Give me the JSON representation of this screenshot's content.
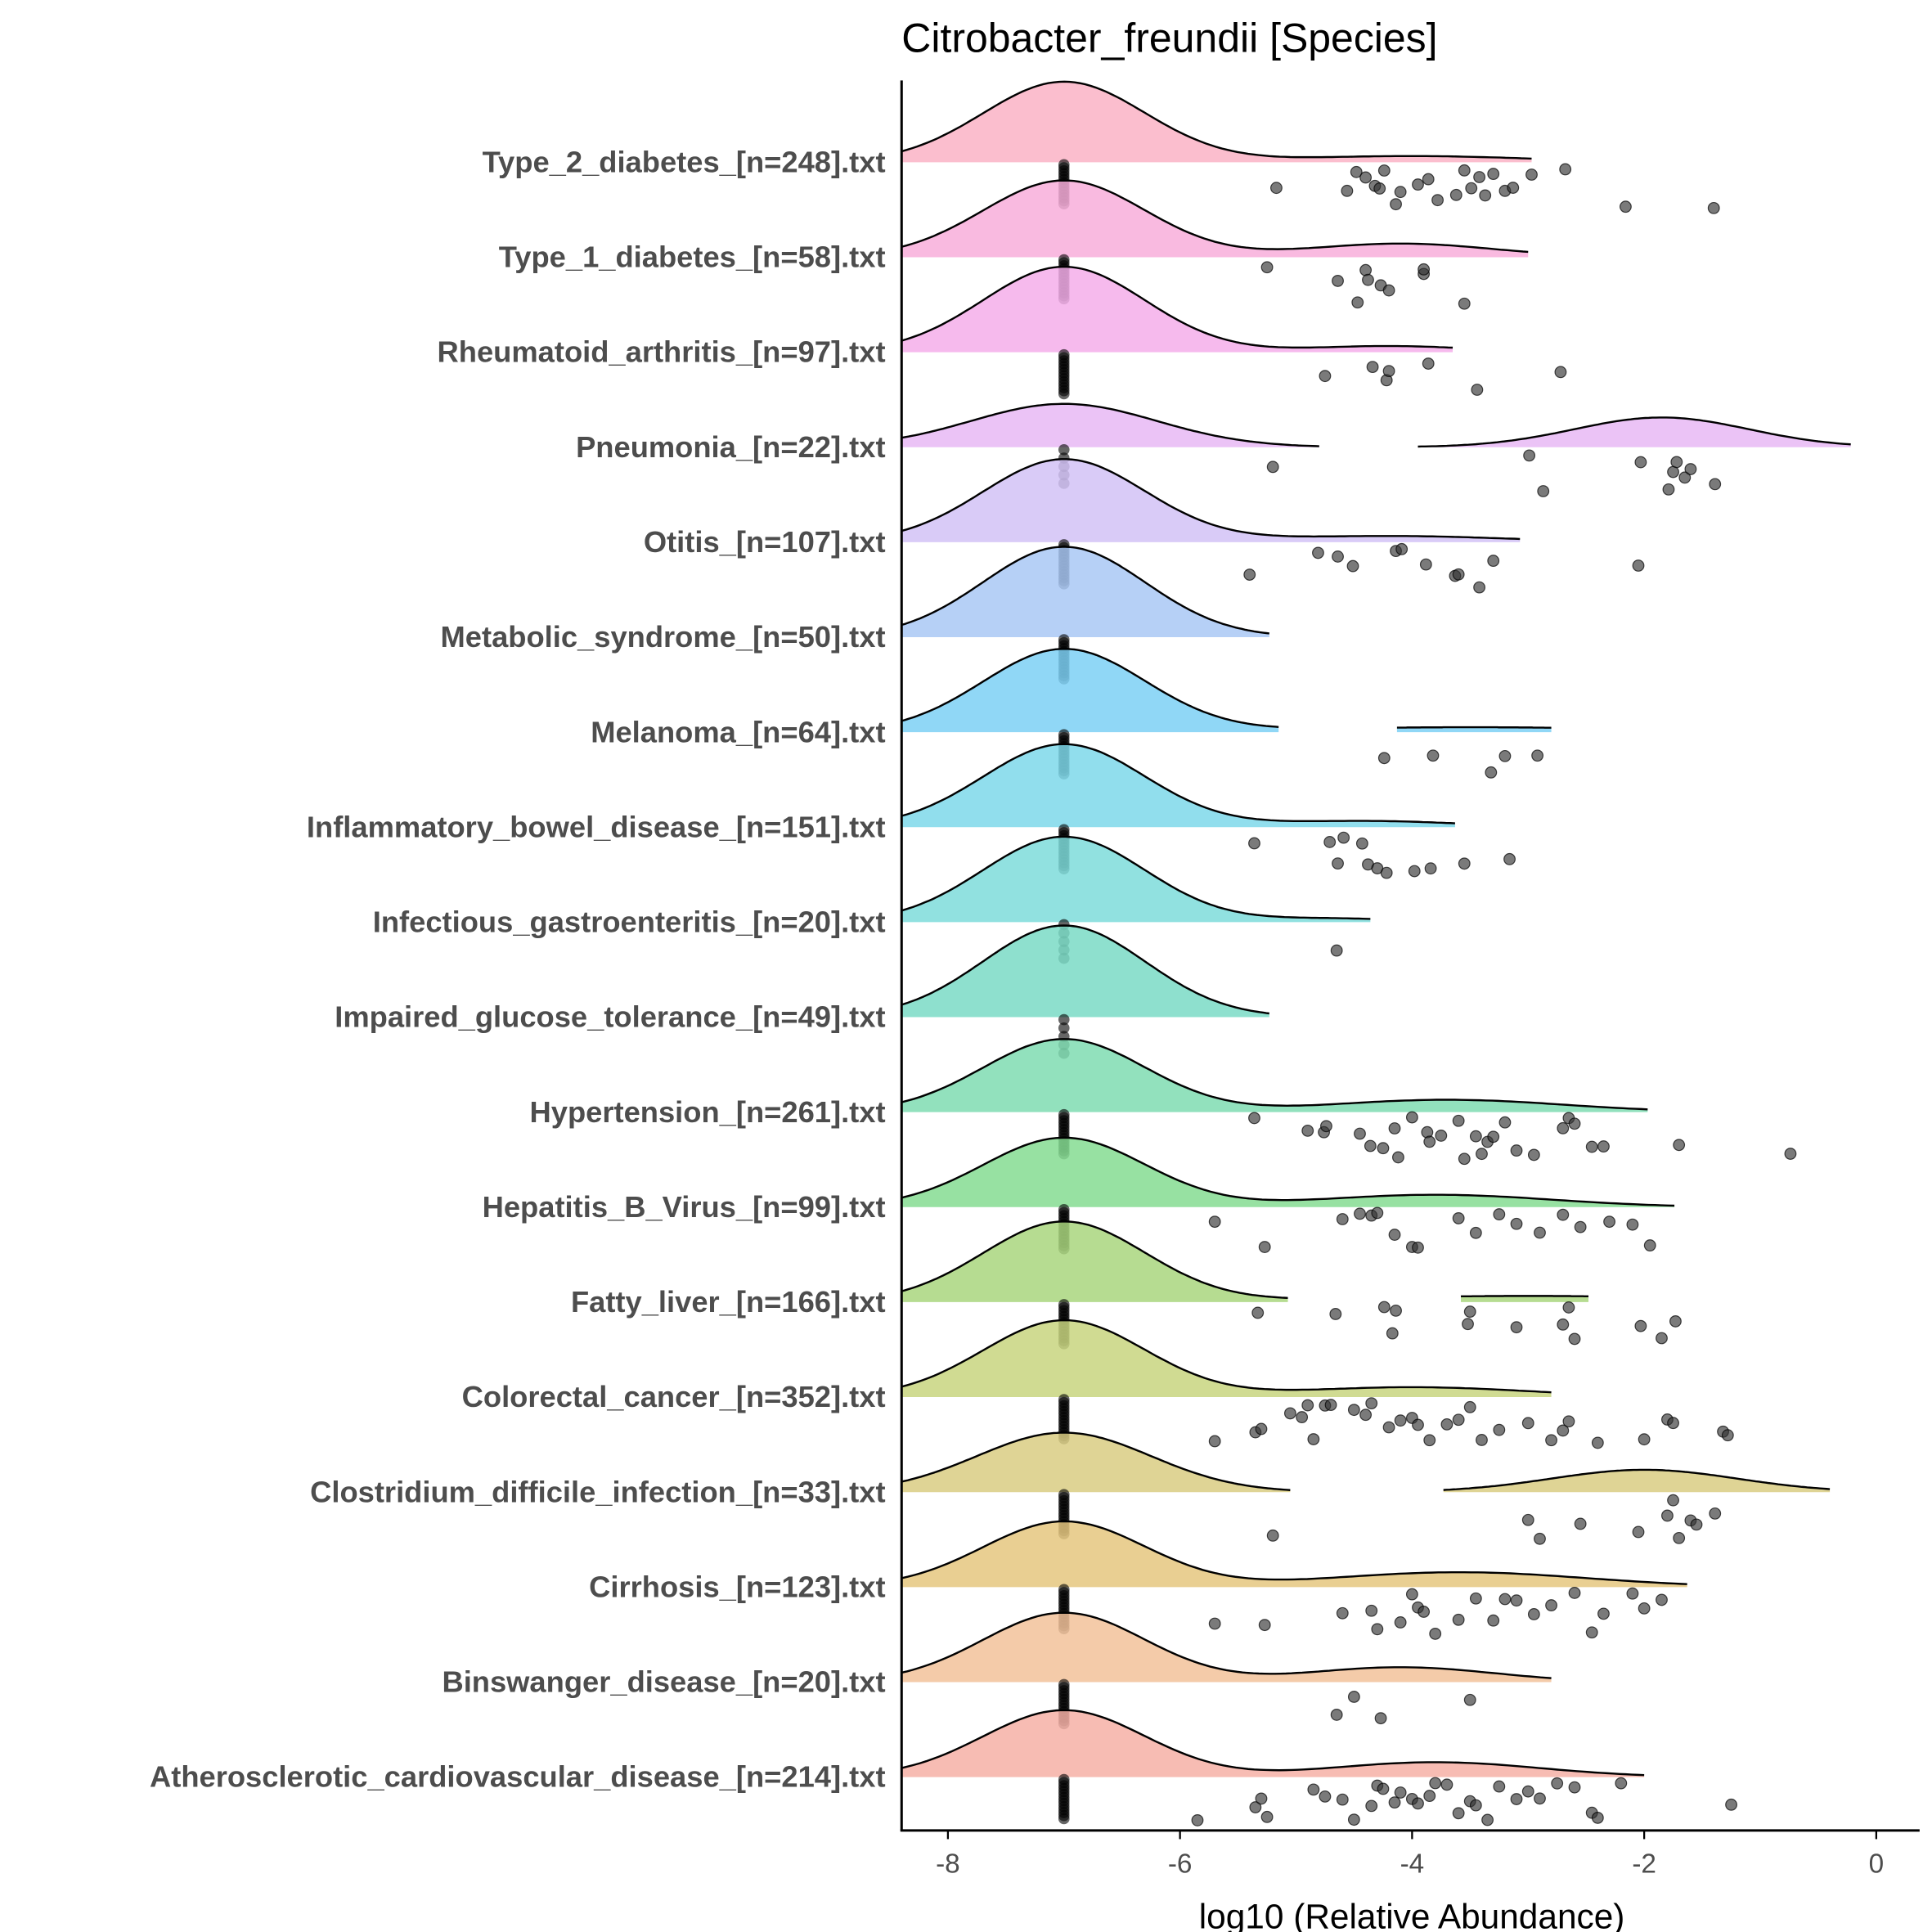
{
  "chart_data": {
    "type": "ridgeline",
    "title": "Citrobacter_freundii [Species]",
    "xlabel": "log10 (Relative Abundance)",
    "ylabel": "",
    "xlim": [
      -8.4,
      0.37
    ],
    "xticks": [
      -8,
      -6,
      -4,
      -2,
      0
    ],
    "xtick_labels": [
      "-8",
      "-6",
      "-4",
      "-2",
      "0"
    ],
    "zero_value": -7,
    "rows": [
      {
        "label": "Type_2_diabetes_[n=248].txt",
        "color": "#FAB3C6",
        "segments": [
          [
            -8.4,
            -2.97
          ]
        ],
        "components": [
          [
            -7,
            0.7,
            65
          ],
          [
            -4,
            1.0,
            5
          ]
        ],
        "points": [
          -5.17,
          -4.56,
          -4.48,
          -4.4,
          -4.32,
          -4.28,
          -4.24,
          -4.14,
          -4.1,
          -3.95,
          -3.86,
          -3.78,
          -3.62,
          -3.55,
          -3.49,
          -3.42,
          -3.37,
          -3.3,
          -3.2,
          -3.13,
          -2.97,
          -2.68,
          -2.16,
          -1.4
        ]
      },
      {
        "label": "Type_1_diabetes_[n=58].txt",
        "color": "#F8AEDA",
        "segments": [
          [
            -8.4,
            -3.0
          ]
        ],
        "components": [
          [
            -7,
            0.7,
            62
          ],
          [
            -4.1,
            0.8,
            11
          ]
        ],
        "points": [
          -5.25,
          -4.64,
          -4.47,
          -4.4,
          -4.38,
          -4.27,
          -4.2,
          -3.9,
          -3.9,
          -3.55
        ]
      },
      {
        "label": "Rheumatoid_arthritis_[n=97].txt",
        "color": "#F5AEEA",
        "segments": [
          [
            -8.4,
            -3.65
          ]
        ],
        "components": [
          [
            -7,
            0.7,
            69
          ],
          [
            -4.2,
            0.7,
            5
          ]
        ],
        "points": [
          -4.75,
          -4.34,
          -4.22,
          -4.2,
          -3.86,
          -3.44,
          -2.72
        ]
      },
      {
        "label": "Pneumonia_[n=22].txt",
        "color": "#E8B9F4",
        "segments": [
          [
            -8.4,
            -4.8
          ],
          [
            -3.95,
            -0.22
          ]
        ],
        "components": [
          [
            -7,
            0.8,
            35
          ],
          [
            -1.85,
            0.75,
            24
          ]
        ],
        "points": [
          -5.2,
          -2.99,
          -2.87,
          -2.03,
          -1.79,
          -1.75,
          -1.72,
          -1.65,
          -1.6,
          -1.39
        ]
      },
      {
        "label": "Otitis_[n=107].txt",
        "color": "#D2C2F6",
        "segments": [
          [
            -8.4,
            -3.07
          ]
        ],
        "components": [
          [
            -7,
            0.7,
            67
          ],
          [
            -4.2,
            1.0,
            5
          ]
        ],
        "points": [
          -5.4,
          -4.81,
          -4.64,
          -4.51,
          -4.14,
          -4.09,
          -3.88,
          -3.63,
          -3.6,
          -3.42,
          -3.3,
          -2.05
        ]
      },
      {
        "label": "Metabolic_syndrome_[n=50].txt",
        "color": "#A9C8F5",
        "segments": [
          [
            -8.4,
            -5.23
          ]
        ],
        "components": [
          [
            -7,
            0.7,
            73
          ]
        ],
        "points": []
      },
      {
        "label": "Melanoma_[n=64].txt",
        "color": "#7DD0F5",
        "segments": [
          [
            -8.4,
            -5.15
          ],
          [
            -4.13,
            -2.8
          ]
        ],
        "components": [
          [
            -7,
            0.7,
            67
          ],
          [
            -3.5,
            1.5,
            4
          ]
        ],
        "points": [
          -4.24,
          -3.82,
          -3.32,
          -3.2,
          -2.92
        ]
      },
      {
        "label": "Inflammatory_bowel_disease_[n=151].txt",
        "color": "#7ED8EA",
        "segments": [
          [
            -8.4,
            -3.63
          ]
        ],
        "components": [
          [
            -7,
            0.7,
            67
          ],
          [
            -4.4,
            0.8,
            5
          ]
        ],
        "points": [
          -5.36,
          -4.71,
          -4.64,
          -4.59,
          -4.43,
          -4.38,
          -4.3,
          -4.22,
          -3.98,
          -3.84,
          -3.55,
          -3.16
        ]
      },
      {
        "label": "Infectious_gastroenteritis_[n=20].txt",
        "color": "#7EDCDA",
        "segments": [
          [
            -8.4,
            -4.36
          ]
        ],
        "components": [
          [
            -7,
            0.7,
            69
          ],
          [
            -4.7,
            0.6,
            3
          ]
        ],
        "points": [
          -4.65
        ]
      },
      {
        "label": "Impaired_glucose_tolerance_[n=49].txt",
        "color": "#7ADBC6",
        "segments": [
          [
            -8.4,
            -5.23
          ]
        ],
        "components": [
          [
            -7,
            0.7,
            74
          ]
        ],
        "points": []
      },
      {
        "label": "Hypertension_[n=261].txt",
        "color": "#7FDCB2",
        "segments": [
          [
            -8.4,
            -1.97
          ]
        ],
        "components": [
          [
            -7,
            0.7,
            59
          ],
          [
            -3.7,
            1.0,
            10
          ]
        ],
        "points": [
          -5.36,
          -4.9,
          -4.76,
          -4.74,
          -4.45,
          -4.36,
          -4.25,
          -4.15,
          -4.12,
          -4.0,
          -3.87,
          -3.85,
          -3.75,
          -3.6,
          -3.55,
          -3.45,
          -3.4,
          -3.35,
          -3.3,
          -3.2,
          -3.1,
          -2.95,
          -2.7,
          -2.65,
          -2.6,
          -2.45,
          -2.35,
          -1.7,
          -0.74
        ]
      },
      {
        "label": "Hepatitis_B_Virus_[n=99].txt",
        "color": "#85DC92",
        "segments": [
          [
            -8.4,
            -1.74
          ]
        ],
        "components": [
          [
            -7,
            0.7,
            56
          ],
          [
            -3.8,
            1.0,
            10
          ]
        ],
        "points": [
          -5.7,
          -5.27,
          -4.6,
          -4.45,
          -4.35,
          -4.3,
          -4.15,
          -4.0,
          -3.95,
          -3.6,
          -3.45,
          -3.25,
          -3.1,
          -2.9,
          -2.7,
          -2.55,
          -2.3,
          -2.1,
          -1.95
        ]
      },
      {
        "label": "Fatty_liver_[n=166].txt",
        "color": "#A9D67E",
        "segments": [
          [
            -8.4,
            -5.07
          ],
          [
            -3.58,
            -2.48
          ]
        ],
        "components": [
          [
            -7,
            0.7,
            65
          ],
          [
            -3.0,
            1.5,
            5
          ]
        ],
        "points": [
          -5.33,
          -4.66,
          -4.24,
          -4.17,
          -4.14,
          -3.52,
          -3.5,
          -3.1,
          -2.7,
          -2.65,
          -2.6,
          -2.03,
          -1.85,
          -1.73
        ]
      },
      {
        "label": "Colorectal_cancer_[n=352].txt",
        "color": "#C8D57F",
        "segments": [
          [
            -8.4,
            -2.8
          ]
        ],
        "components": [
          [
            -7,
            0.7,
            62
          ],
          [
            -4.0,
            1.0,
            8
          ]
        ],
        "points": [
          -5.7,
          -5.35,
          -5.3,
          -5.05,
          -4.95,
          -4.9,
          -4.85,
          -4.75,
          -4.7,
          -4.5,
          -4.4,
          -4.35,
          -4.2,
          -4.1,
          -4.0,
          -3.95,
          -3.85,
          -3.7,
          -3.6,
          -3.5,
          -3.4,
          -3.25,
          -3.0,
          -2.8,
          -2.7,
          -2.65,
          -2.4,
          -2.0,
          -1.8,
          -1.75,
          -1.32,
          -1.28
        ]
      },
      {
        "label": "Clostridium_difficile_infection_[n=33].txt",
        "color": "#D9CC82",
        "segments": [
          [
            -8.4,
            -5.05
          ],
          [
            -3.73,
            -0.4
          ]
        ],
        "components": [
          [
            -7,
            0.75,
            48
          ],
          [
            -2.0,
            0.8,
            18
          ]
        ],
        "points": [
          -5.2,
          -3.0,
          -2.9,
          -2.55,
          -2.05,
          -1.8,
          -1.75,
          -1.7,
          -1.6,
          -1.55,
          -1.39
        ]
      },
      {
        "label": "Cirrhosis_[n=123].txt",
        "color": "#E5C77F",
        "segments": [
          [
            -8.4,
            -1.63
          ]
        ],
        "components": [
          [
            -7,
            0.7,
            53
          ],
          [
            -3.6,
            1.1,
            12
          ]
        ],
        "points": [
          -5.7,
          -5.27,
          -4.6,
          -4.35,
          -4.3,
          -4.1,
          -4.0,
          -3.95,
          -3.9,
          -3.8,
          -3.6,
          -3.45,
          -3.3,
          -3.2,
          -3.1,
          -2.95,
          -2.8,
          -2.6,
          -2.45,
          -2.35,
          -2.1,
          -2.0,
          -1.85
        ]
      },
      {
        "label": "Binswanger_disease_[n=20].txt",
        "color": "#F2C29A",
        "segments": [
          [
            -8.4,
            -2.8
          ]
        ],
        "components": [
          [
            -7,
            0.7,
            56
          ],
          [
            -4.1,
            0.8,
            12
          ]
        ],
        "points": [
          -4.65,
          -4.5,
          -4.27,
          -3.5
        ]
      },
      {
        "label": "Atherosclerotic_cardiovascular_disease_[n=214].txt",
        "color": "#F6B0A6",
        "segments": [
          [
            -8.4,
            -2.0
          ]
        ],
        "components": [
          [
            -7,
            0.7,
            54
          ],
          [
            -3.8,
            0.9,
            12
          ]
        ],
        "points": [
          -5.85,
          -5.35,
          -5.3,
          -5.25,
          -4.85,
          -4.75,
          -4.6,
          -4.5,
          -4.35,
          -4.3,
          -4.25,
          -4.15,
          -4.1,
          -4.0,
          -3.95,
          -3.85,
          -3.8,
          -3.7,
          -3.6,
          -3.5,
          -3.45,
          -3.35,
          -3.25,
          -3.1,
          -3.0,
          -2.9,
          -2.75,
          -2.6,
          -2.45,
          -2.4,
          -2.2,
          -1.25
        ]
      }
    ]
  }
}
